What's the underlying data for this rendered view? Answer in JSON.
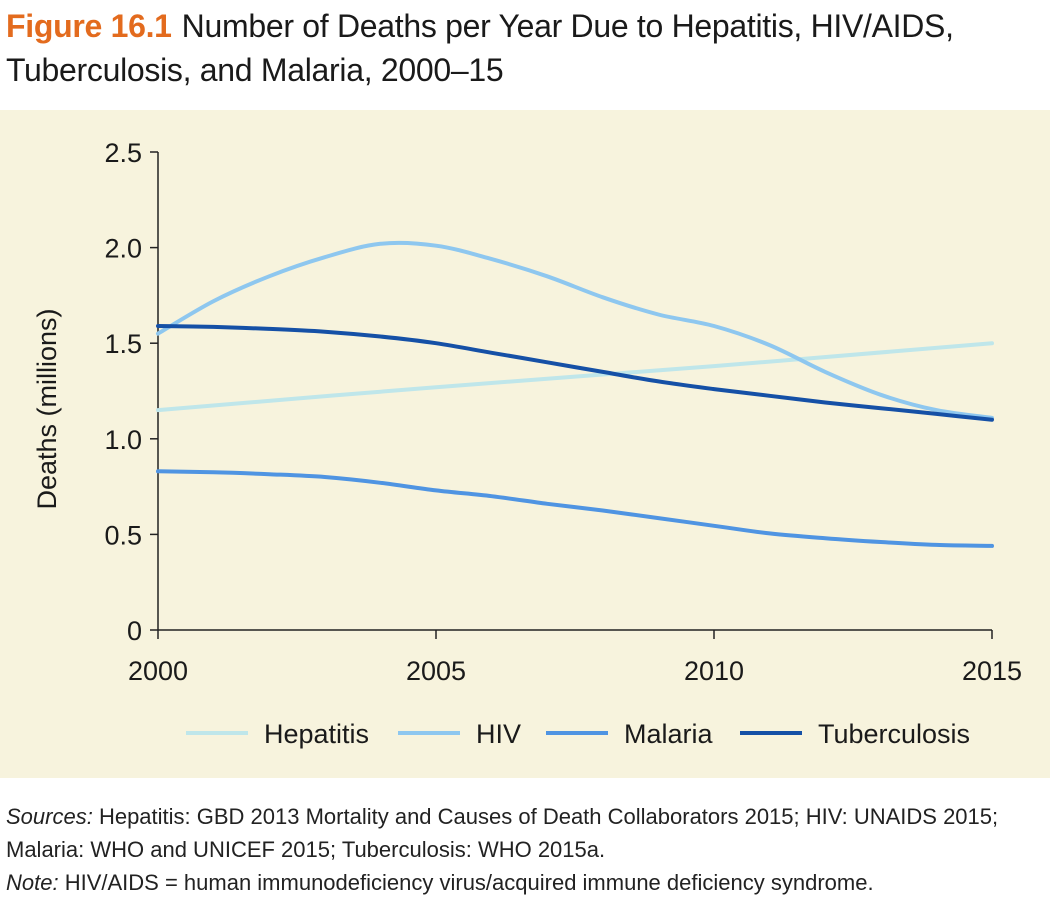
{
  "figure": {
    "label": "Figure 16.1",
    "title": "Number of Deaths per Year Due to Hepatitis, HIV/AIDS, Tuberculosis, and Malaria, 2000–15"
  },
  "colors": {
    "label_orange": "#e36b1e",
    "panel_background": "#f7f3dd",
    "hepatitis": "#bfe6ea",
    "hiv": "#8ec7ef",
    "malaria": "#4f94e2",
    "tuberculosis": "#1550a6"
  },
  "chart_data": {
    "type": "line",
    "title": "",
    "xlabel": "",
    "ylabel": "Deaths (millions)",
    "xlim": [
      2000,
      2015
    ],
    "ylim": [
      0,
      2.5
    ],
    "x_ticks": [
      "2000",
      "2005",
      "2010",
      "2015"
    ],
    "y_ticks": [
      "0",
      "0.5",
      "1.0",
      "1.5",
      "2.0",
      "2.5"
    ],
    "grid": false,
    "legend_position": "bottom",
    "series": [
      {
        "name": "Hepatitis",
        "color": "#bfe6ea",
        "x": [
          2000,
          2005,
          2010,
          2015
        ],
        "y": [
          1.15,
          1.27,
          1.38,
          1.5
        ]
      },
      {
        "name": "HIV",
        "color": "#8ec7ef",
        "x": [
          2000,
          2001,
          2002,
          2003,
          2004,
          2005,
          2006,
          2007,
          2008,
          2009,
          2010,
          2011,
          2012,
          2013,
          2014,
          2015
        ],
        "y": [
          1.55,
          1.72,
          1.85,
          1.95,
          2.02,
          2.01,
          1.94,
          1.85,
          1.74,
          1.65,
          1.59,
          1.49,
          1.35,
          1.23,
          1.15,
          1.11
        ]
      },
      {
        "name": "Malaria",
        "color": "#4f94e2",
        "x": [
          2000,
          2001,
          2002,
          2003,
          2004,
          2005,
          2006,
          2007,
          2008,
          2009,
          2010,
          2011,
          2012,
          2013,
          2014,
          2015
        ],
        "y": [
          0.83,
          0.825,
          0.815,
          0.8,
          0.77,
          0.73,
          0.7,
          0.66,
          0.625,
          0.585,
          0.545,
          0.505,
          0.48,
          0.46,
          0.445,
          0.44
        ]
      },
      {
        "name": "Tuberculosis",
        "color": "#1550a6",
        "x": [
          2000,
          2001,
          2002,
          2003,
          2004,
          2005,
          2006,
          2007,
          2008,
          2009,
          2010,
          2011,
          2012,
          2013,
          2014,
          2015
        ],
        "y": [
          1.59,
          1.585,
          1.575,
          1.56,
          1.535,
          1.5,
          1.45,
          1.4,
          1.35,
          1.3,
          1.26,
          1.225,
          1.19,
          1.16,
          1.13,
          1.1
        ]
      }
    ]
  },
  "notes": {
    "sources_label": "Sources:",
    "sources_text": " Hepatitis: GBD 2013 Mortality and Causes of Death Collaborators 2015; HIV: UNAIDS 2015; Malaria: WHO and UNICEF 2015; Tuberculosis: WHO 2015a.",
    "note_label": "Note:",
    "note_text": " HIV/AIDS = human immunodeficiency virus/acquired immune deficiency syndrome."
  }
}
